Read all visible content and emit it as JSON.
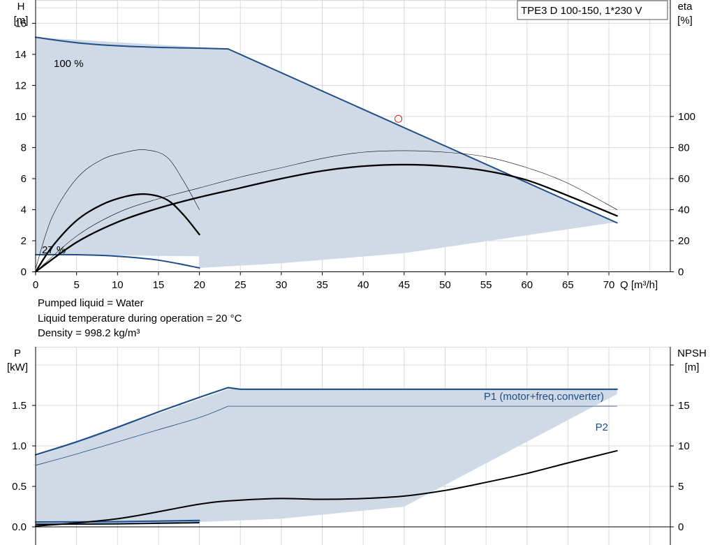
{
  "title": "TPE3 D 100-150, 1*230 V",
  "colors": {
    "region": "#cfdae6",
    "pump_curve": "#1f4e88",
    "efficiency": "#000000",
    "grid": "#d9d9d9",
    "duty_point": "#d22222"
  },
  "conditions": {
    "line1": "Pumped liquid = Water",
    "line2": "Liquid temperature during operation = 20 °C",
    "line3": "Density = 998.2 kg/m³"
  },
  "chart_data": [
    {
      "type": "line",
      "ylabel": "H",
      "yunit": "[m]",
      "y2label": "eta",
      "y2unit": "[%]",
      "xlabel": "Q [m³/h]",
      "xlim": [
        0,
        77.5
      ],
      "ylim": [
        0,
        17.5
      ],
      "y2lim": [
        0,
        175
      ],
      "grid": true,
      "x_ticks": [
        0,
        5,
        10,
        15,
        20,
        25,
        30,
        35,
        40,
        45,
        50,
        55,
        60,
        65,
        70
      ],
      "y_ticks": [
        0,
        2,
        4,
        6,
        8,
        10,
        12,
        14,
        16
      ],
      "y2_ticks": [
        0,
        20,
        40,
        60,
        80,
        100
      ],
      "annotations": {
        "max_speed": "100 %",
        "min_speed": "27 %"
      },
      "duty_point": {
        "x": 44.3,
        "y": 9.85
      },
      "region": {
        "x": [
          0,
          23.5,
          71,
          71,
          45,
          30,
          20,
          20,
          0
        ],
        "y": [
          15.1,
          14.35,
          3.15,
          3.2,
          1.2,
          0.55,
          0.25,
          1.0,
          1.1
        ]
      },
      "series": [
        {
          "role": "head_max",
          "x": [
            0,
            5,
            10,
            15,
            20,
            23.5,
            71
          ],
          "y": [
            15.1,
            14.75,
            14.55,
            14.45,
            14.4,
            14.35,
            3.15
          ]
        },
        {
          "role": "head_min",
          "x": [
            0,
            5,
            10,
            15,
            20
          ],
          "y": [
            1.1,
            1.1,
            1.0,
            0.75,
            0.25
          ]
        },
        {
          "role": "eta_100_thick",
          "x": [
            0,
            5,
            10,
            15,
            20,
            25,
            30,
            35,
            40,
            45,
            50,
            55,
            60,
            65,
            71
          ],
          "y": [
            0,
            19,
            32,
            41,
            48,
            54,
            60,
            65,
            68,
            69,
            68,
            65,
            59,
            49,
            36
          ]
        },
        {
          "role": "eta_100_thin",
          "x": [
            0,
            5,
            10,
            15,
            20,
            25,
            30,
            35,
            40,
            45,
            50,
            55,
            60,
            65,
            71
          ],
          "y": [
            0,
            23,
            38,
            47,
            54,
            61,
            67,
            73,
            77,
            78,
            77,
            74,
            67,
            57,
            40
          ]
        },
        {
          "role": "eta_27_thick",
          "x": [
            0,
            2,
            5,
            8,
            11,
            13.5,
            16,
            18,
            20
          ],
          "y": [
            0,
            16,
            33,
            43,
            48.5,
            50,
            46.5,
            37,
            24
          ]
        },
        {
          "role": "eta_27_thin",
          "x": [
            0,
            2,
            5,
            8,
            11,
            13.5,
            16,
            18,
            20
          ],
          "y": [
            2,
            35,
            60,
            72,
            77,
            78.5,
            74,
            59,
            40
          ]
        }
      ]
    },
    {
      "type": "line",
      "ylabel": "P",
      "yunit": "[kW]",
      "y2label": "NPSH",
      "y2unit": "[m]",
      "xlim": [
        0,
        77.5
      ],
      "ylim": [
        0,
        2.0
      ],
      "y2lim": [
        0,
        20
      ],
      "grid": true,
      "y_ticks": [
        0.0,
        0.5,
        1.0,
        1.5
      ],
      "y_tick_labels": [
        "0.0",
        "0.5",
        "1.0",
        "1.5"
      ],
      "y2_ticks": [
        0,
        5,
        10,
        15
      ],
      "region": {
        "x": [
          0,
          23.5,
          71,
          71,
          45,
          30,
          20,
          0
        ],
        "y": [
          0.87,
          1.7,
          1.7,
          1.64,
          0.25,
          0.1,
          0.06,
          0.05
        ]
      },
      "series": [
        {
          "name": "P1 (motor+freq.converter)",
          "role": "p1_max",
          "x": [
            0,
            5,
            10,
            15,
            20,
            23.5,
            25,
            40,
            55,
            71
          ],
          "y": [
            0.89,
            1.05,
            1.23,
            1.42,
            1.6,
            1.72,
            1.7,
            1.7,
            1.7,
            1.7
          ]
        },
        {
          "name": "P2",
          "role": "p2_max",
          "x": [
            0,
            5,
            10,
            15,
            20,
            23.5,
            40,
            71
          ],
          "y": [
            0.76,
            0.9,
            1.05,
            1.2,
            1.35,
            1.49,
            1.49,
            1.49
          ]
        },
        {
          "role": "p1_min",
          "x": [
            0,
            10,
            20
          ],
          "y": [
            0.06,
            0.065,
            0.08
          ]
        },
        {
          "role": "p2_min",
          "x": [
            0,
            10,
            20
          ],
          "y": [
            0.04,
            0.045,
            0.06
          ]
        },
        {
          "role": "npsh",
          "axis": "right",
          "x": [
            0,
            10,
            20,
            25,
            30,
            35,
            40,
            45,
            50,
            55,
            60,
            65,
            71
          ],
          "y": [
            0.1,
            1.0,
            2.8,
            3.3,
            3.5,
            3.4,
            3.5,
            3.8,
            4.5,
            5.5,
            6.6,
            7.9,
            9.4
          ]
        }
      ]
    }
  ]
}
